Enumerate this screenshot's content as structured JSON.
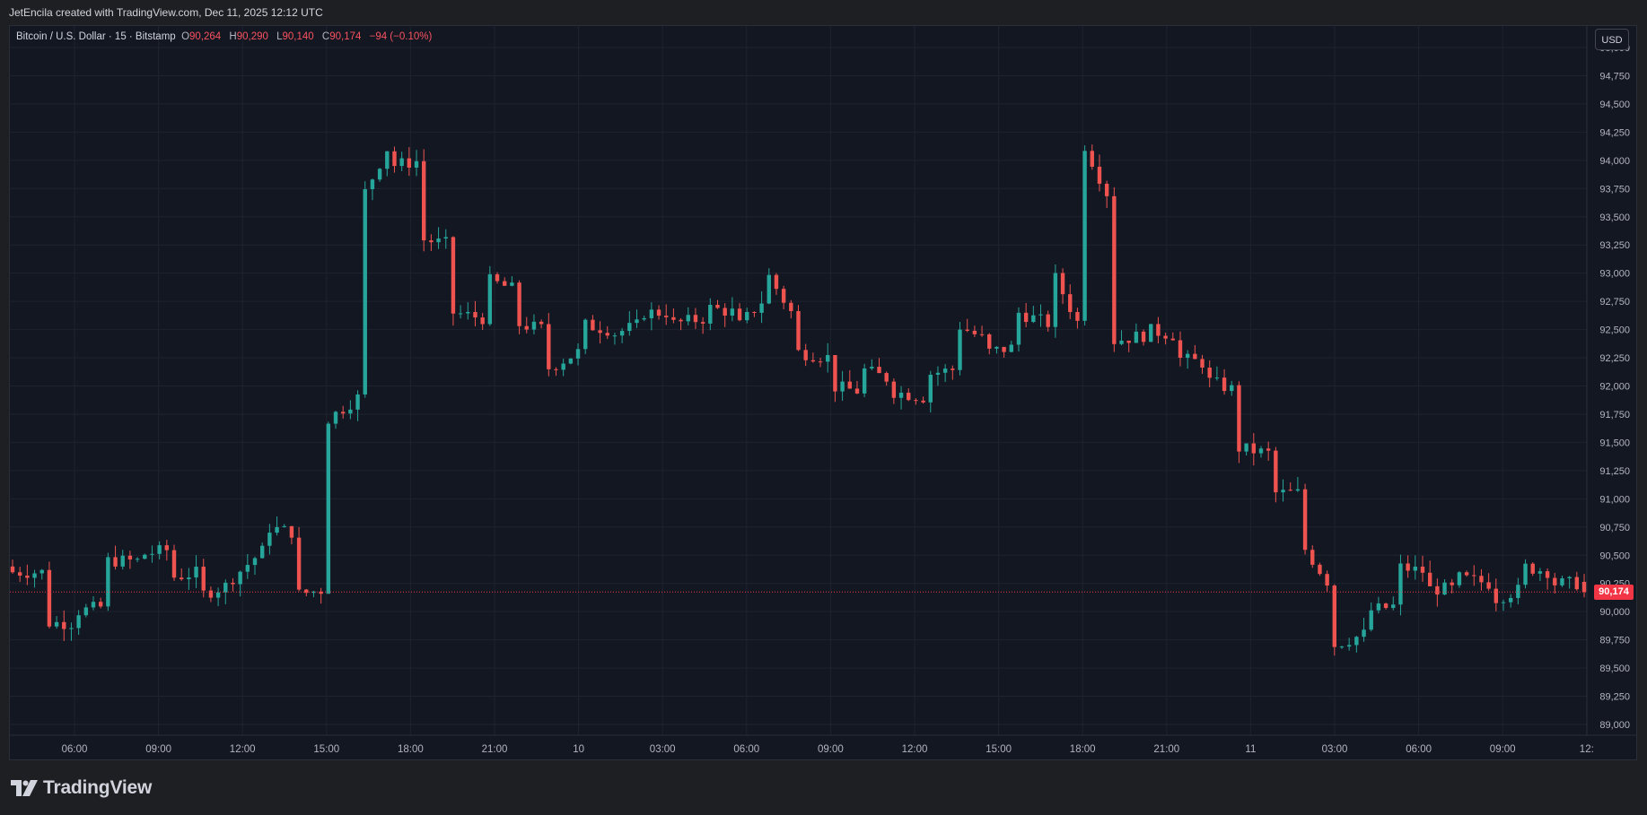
{
  "header": {
    "attribution": "JetEncila created with TradingView.com, Dec 11, 2025 12:12 UTC"
  },
  "legend": {
    "symbol": "Bitcoin / U.S. Dollar · 15 · Bitstamp",
    "open_label": "O",
    "open": "90,264",
    "high_label": "H",
    "high": "90,290",
    "low_label": "L",
    "low": "90,140",
    "close_label": "C",
    "close": "90,174",
    "change": "−94 (−0.10%)"
  },
  "currency_button": "USD",
  "last_price_label": "90,174",
  "footer": {
    "brand": "TradingView"
  },
  "colors": {
    "up": "#26a69a",
    "down": "#ef5350",
    "background": "#131722",
    "grid": "#1f2330",
    "axis_text": "#b2b5be",
    "last_price": "#f23645"
  },
  "chart_data": {
    "type": "candlestick",
    "title": "Bitcoin / U.S. Dollar · 15 · Bitstamp",
    "ylim": [
      88750,
      95250
    ],
    "last_price": 90174,
    "grid": true,
    "y_ticks": [
      {
        "v": 89000,
        "label": "89,000"
      },
      {
        "v": 89250,
        "label": "89,250"
      },
      {
        "v": 89500,
        "label": "89,500"
      },
      {
        "v": 89750,
        "label": "89,750"
      },
      {
        "v": 90000,
        "label": "90,000"
      },
      {
        "v": 90250,
        "label": "90,250"
      },
      {
        "v": 90500,
        "label": "90,500"
      },
      {
        "v": 90750,
        "label": "90,750"
      },
      {
        "v": 91000,
        "label": "91,000"
      },
      {
        "v": 91250,
        "label": "91,250"
      },
      {
        "v": 91500,
        "label": "91,500"
      },
      {
        "v": 91750,
        "label": "91,750"
      },
      {
        "v": 92000,
        "label": "92,000"
      },
      {
        "v": 92250,
        "label": "92,250"
      },
      {
        "v": 92500,
        "label": "92,500"
      },
      {
        "v": 92750,
        "label": "92,750"
      },
      {
        "v": 93000,
        "label": "93,000"
      },
      {
        "v": 93250,
        "label": "93,250"
      },
      {
        "v": 93500,
        "label": "93,500"
      },
      {
        "v": 93750,
        "label": "93,750"
      },
      {
        "v": 94000,
        "label": "94,000"
      },
      {
        "v": 94250,
        "label": "94,250"
      },
      {
        "v": 94500,
        "label": "94,500"
      },
      {
        "v": 94750,
        "label": "94,750"
      },
      {
        "v": 95000,
        "label": "95,000"
      }
    ],
    "x_ticks": [
      {
        "t": 0,
        "label": "06:00"
      },
      {
        "t": 1,
        "label": "09:00"
      },
      {
        "t": 2,
        "label": "12:00"
      },
      {
        "t": 3,
        "label": "15:00"
      },
      {
        "t": 4,
        "label": "18:00"
      },
      {
        "t": 5,
        "label": "21:00"
      },
      {
        "t": 6,
        "label": "10"
      },
      {
        "t": 7,
        "label": "03:00"
      },
      {
        "t": 8,
        "label": "06:00"
      },
      {
        "t": 9,
        "label": "09:00"
      },
      {
        "t": 10,
        "label": "12:00"
      },
      {
        "t": 11,
        "label": "15:00"
      },
      {
        "t": 12,
        "label": "18:00"
      },
      {
        "t": 13,
        "label": "21:00"
      },
      {
        "t": 14,
        "label": "11"
      },
      {
        "t": 15,
        "label": "03:00"
      },
      {
        "t": 16,
        "label": "06:00"
      },
      {
        "t": 17,
        "label": "09:00"
      },
      {
        "t": 18,
        "label": "12:"
      }
    ],
    "anchors": [
      [
        90400,
        90350
      ],
      [
        90350,
        89900
      ],
      [
        89900,
        90000
      ],
      [
        90050,
        90450
      ],
      [
        90450,
        90500
      ],
      [
        90550,
        90300
      ],
      [
        90350,
        90150
      ],
      [
        90250,
        90300
      ],
      [
        90550,
        90750
      ],
      [
        90700,
        90150
      ],
      [
        90200,
        91700
      ],
      [
        91900,
        93600
      ],
      [
        94150,
        93950
      ],
      [
        94000,
        93300
      ],
      [
        93250,
        92650
      ],
      [
        92600,
        92950
      ],
      [
        92850,
        92550
      ],
      [
        92500,
        92150
      ],
      [
        92300,
        92550
      ],
      [
        92500,
        92450
      ],
      [
        92550,
        92650
      ],
      [
        92650,
        92550
      ],
      [
        92600,
        92700
      ],
      [
        92650,
        92500
      ],
      [
        92800,
        93000
      ],
      [
        92550,
        92300
      ],
      [
        92250,
        92000
      ],
      [
        91950,
        92150
      ],
      [
        92050,
        91950
      ],
      [
        91900,
        92100
      ],
      [
        92150,
        92550
      ],
      [
        92400,
        92300
      ],
      [
        92350,
        92650
      ],
      [
        92550,
        93050
      ],
      [
        92500,
        94200
      ],
      [
        93600,
        92400
      ],
      [
        92450,
        92500
      ],
      [
        92450,
        92250
      ],
      [
        92200,
        92050
      ],
      [
        91950,
        91450
      ],
      [
        91400,
        91050
      ],
      [
        91050,
        90600
      ],
      [
        90200,
        89700
      ],
      [
        89800,
        90000
      ],
      [
        90050,
        90400
      ],
      [
        90350,
        90200
      ],
      [
        90200,
        90300
      ],
      [
        90250,
        90100
      ],
      [
        90200,
        90400
      ],
      [
        90350,
        90250
      ],
      [
        90250,
        90200
      ]
    ]
  }
}
